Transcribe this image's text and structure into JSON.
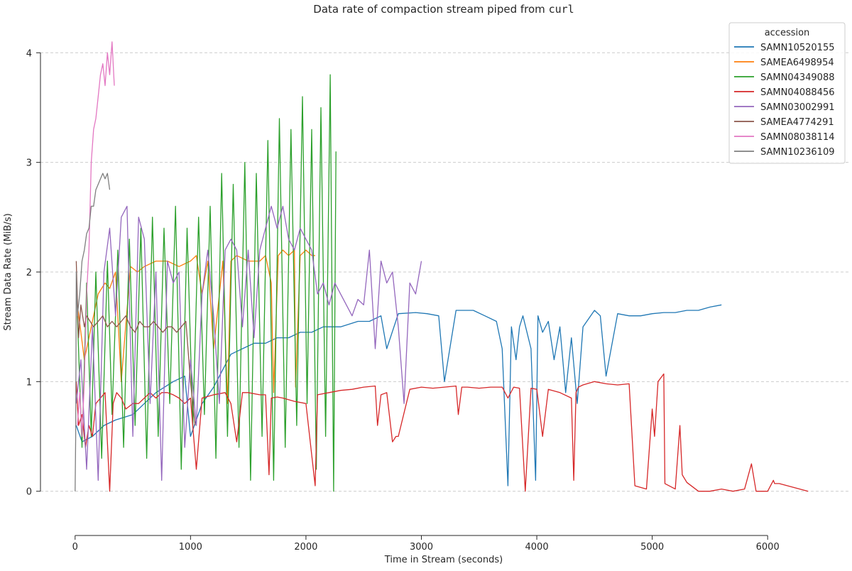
{
  "chart_data": {
    "type": "line",
    "title_prefix": "Data rate of compaction stream piped from ",
    "title_code": "curl",
    "xlabel": "Time in Stream (seconds)",
    "ylabel": "Stream Data Rate (MiB/s)",
    "xlim": [
      -300,
      6700
    ],
    "ylim": [
      -0.3,
      4.3
    ],
    "x_ticks": [
      0,
      1000,
      2000,
      3000,
      4000,
      5000,
      6000
    ],
    "y_ticks": [
      0,
      1,
      2,
      3,
      4
    ],
    "grid": "y-dashed",
    "legend_title": "accession",
    "legend_position": "top-right",
    "series": [
      {
        "name": "SAMN10520155",
        "color": "#1f77b4",
        "x": [
          10,
          60,
          150,
          250,
          350,
          500,
          600,
          700,
          850,
          950,
          1000,
          1100,
          1200,
          1300,
          1350,
          1450,
          1550,
          1650,
          1750,
          1850,
          1950,
          2050,
          2150,
          2300,
          2450,
          2550,
          2650,
          2700,
          2800,
          2950,
          3050,
          3150,
          3200,
          3300,
          3450,
          3550,
          3650,
          3700,
          3750,
          3780,
          3820,
          3850,
          3880,
          3950,
          3990,
          4010,
          4050,
          4100,
          4150,
          4200,
          4250,
          4300,
          4350,
          4400,
          4500,
          4550,
          4600,
          4700,
          4800,
          4900,
          5000,
          5100,
          5200,
          5300,
          5400,
          5500,
          5600
        ],
        "y": [
          0.6,
          0.45,
          0.5,
          0.6,
          0.65,
          0.7,
          0.8,
          0.9,
          1.0,
          1.05,
          0.5,
          0.8,
          0.95,
          1.15,
          1.25,
          1.3,
          1.35,
          1.35,
          1.4,
          1.4,
          1.45,
          1.45,
          1.5,
          1.5,
          1.55,
          1.55,
          1.6,
          1.3,
          1.62,
          1.63,
          1.62,
          1.6,
          1.0,
          1.65,
          1.65,
          1.6,
          1.55,
          1.3,
          0.05,
          1.5,
          1.2,
          1.5,
          1.6,
          1.3,
          0.1,
          1.6,
          1.45,
          1.55,
          1.2,
          1.5,
          0.9,
          1.4,
          0.8,
          1.5,
          1.65,
          1.6,
          1.05,
          1.62,
          1.6,
          1.6,
          1.62,
          1.63,
          1.63,
          1.65,
          1.65,
          1.68,
          1.7
        ]
      },
      {
        "name": "SAMEA6498954",
        "color": "#ff7f0e",
        "x": [
          20,
          80,
          140,
          200,
          260,
          300,
          350,
          400,
          480,
          540,
          600,
          700,
          800,
          900,
          1000,
          1050,
          1100,
          1150,
          1200,
          1280,
          1320,
          1350,
          1400,
          1500,
          1600,
          1650,
          1700,
          1720,
          1760,
          1800,
          1850,
          1900,
          1910,
          1950,
          2000,
          2050,
          2080
        ],
        "y": [
          1.7,
          1.2,
          1.5,
          1.8,
          1.9,
          1.85,
          2.0,
          1.0,
          2.05,
          2.0,
          2.05,
          2.1,
          2.1,
          2.05,
          2.1,
          2.15,
          1.8,
          2.1,
          1.3,
          2.1,
          0.8,
          2.1,
          2.15,
          2.1,
          2.1,
          2.15,
          1.9,
          0.9,
          2.15,
          2.2,
          2.15,
          2.2,
          0.95,
          2.15,
          2.2,
          2.15,
          2.15
        ]
      },
      {
        "name": "SAMN04349088",
        "color": "#2ca02c",
        "x": [
          20,
          60,
          100,
          140,
          180,
          230,
          280,
          320,
          370,
          420,
          470,
          520,
          570,
          620,
          670,
          720,
          770,
          820,
          870,
          920,
          970,
          1020,
          1070,
          1120,
          1170,
          1220,
          1270,
          1320,
          1370,
          1420,
          1470,
          1520,
          1570,
          1620,
          1670,
          1720,
          1770,
          1820,
          1870,
          1920,
          1970,
          2010,
          2050,
          2090,
          2130,
          2170,
          2210,
          2240,
          2260
        ],
        "y": [
          1.6,
          0.4,
          1.9,
          0.5,
          2.0,
          0.3,
          2.1,
          0.7,
          2.2,
          0.4,
          2.3,
          0.6,
          2.4,
          0.3,
          2.5,
          0.5,
          2.4,
          0.8,
          2.6,
          0.2,
          2.4,
          0.6,
          2.5,
          0.7,
          2.6,
          0.3,
          2.9,
          0.5,
          2.8,
          0.4,
          3.0,
          0.1,
          2.9,
          0.5,
          3.2,
          0.1,
          3.4,
          0.4,
          3.3,
          0.6,
          3.6,
          0.8,
          3.3,
          0.2,
          3.5,
          0.5,
          3.8,
          0.0,
          3.1
        ]
      },
      {
        "name": "SAMN04088456",
        "color": "#d62728",
        "x": [
          10,
          30,
          60,
          90,
          120,
          150,
          180,
          220,
          260,
          300,
          330,
          360,
          400,
          440,
          500,
          550,
          600,
          650,
          700,
          750,
          800,
          850,
          900,
          950,
          1000,
          1050,
          1100,
          1200,
          1300,
          1350,
          1400,
          1450,
          1500,
          1600,
          1650,
          1680,
          1700,
          1750,
          1800,
          1900,
          2000,
          2080,
          2100,
          2200,
          2300,
          2400,
          2500,
          2600,
          2620,
          2650,
          2700,
          2750,
          2780,
          2800,
          2900,
          3000,
          3100,
          3200,
          3300,
          3320,
          3350,
          3400,
          3500,
          3600,
          3700,
          3750,
          3800,
          3850,
          3900,
          3950,
          4000,
          4050,
          4100,
          4200,
          4300,
          4320,
          4340,
          4360,
          4400,
          4500,
          4600,
          4700,
          4800,
          4850,
          4950,
          5000,
          5020,
          5050,
          5100,
          5110,
          5200,
          5240,
          5260,
          5300,
          5400,
          5500,
          5600,
          5700,
          5800,
          5860,
          5900,
          6000,
          6050,
          6060,
          6100,
          6350
        ],
        "y": [
          1.0,
          0.6,
          0.7,
          0.4,
          0.6,
          0.5,
          0.8,
          0.85,
          0.9,
          0.0,
          0.8,
          0.9,
          0.85,
          0.75,
          0.8,
          0.8,
          0.85,
          0.9,
          0.85,
          0.9,
          0.9,
          0.88,
          0.85,
          0.8,
          0.85,
          0.2,
          0.85,
          0.88,
          0.9,
          0.8,
          0.45,
          0.9,
          0.9,
          0.88,
          0.88,
          0.15,
          0.85,
          0.86,
          0.85,
          0.82,
          0.8,
          0.05,
          0.88,
          0.9,
          0.92,
          0.93,
          0.95,
          0.96,
          0.6,
          0.88,
          0.9,
          0.45,
          0.5,
          0.5,
          0.93,
          0.95,
          0.94,
          0.95,
          0.96,
          0.7,
          0.95,
          0.95,
          0.94,
          0.95,
          0.95,
          0.85,
          0.95,
          0.94,
          0.0,
          0.94,
          0.93,
          0.5,
          0.93,
          0.9,
          0.85,
          0.1,
          0.9,
          0.95,
          0.97,
          1.0,
          0.98,
          0.97,
          0.98,
          0.05,
          0.02,
          0.75,
          0.5,
          1.0,
          1.07,
          0.07,
          0.02,
          0.6,
          0.15,
          0.08,
          0.0,
          0.0,
          0.02,
          0.0,
          0.02,
          0.25,
          0.0,
          0.0,
          0.1,
          0.07,
          0.07,
          0.0
        ]
      },
      {
        "name": "SAMN03002991",
        "color": "#9467bd",
        "x": [
          10,
          50,
          100,
          150,
          200,
          250,
          300,
          350,
          400,
          450,
          500,
          550,
          600,
          650,
          700,
          750,
          800,
          850,
          900,
          950,
          1000,
          1050,
          1100,
          1150,
          1200,
          1250,
          1300,
          1350,
          1400,
          1450,
          1500,
          1550,
          1600,
          1650,
          1700,
          1750,
          1800,
          1850,
          1900,
          1950,
          2000,
          2050,
          2100,
          2150,
          2200,
          2250,
          2300,
          2350,
          2400,
          2450,
          2500,
          2550,
          2600,
          2650,
          2700,
          2750,
          2800,
          2850,
          2900,
          2950,
          3000
        ],
        "y": [
          0.8,
          1.2,
          0.2,
          1.5,
          0.1,
          2.0,
          2.4,
          1.6,
          2.5,
          2.6,
          0.5,
          2.5,
          2.3,
          0.8,
          2.0,
          0.1,
          2.1,
          1.9,
          2.0,
          0.4,
          1.2,
          0.6,
          1.8,
          2.2,
          1.6,
          0.8,
          2.2,
          2.3,
          2.2,
          1.5,
          2.2,
          1.4,
          2.2,
          2.4,
          2.6,
          2.4,
          2.6,
          2.3,
          2.2,
          2.4,
          2.3,
          2.2,
          1.8,
          1.9,
          1.7,
          1.9,
          1.8,
          1.7,
          1.6,
          1.75,
          1.7,
          2.2,
          1.3,
          2.1,
          1.9,
          2.0,
          1.5,
          0.8,
          1.9,
          1.8,
          2.1
        ]
      },
      {
        "name": "SAMEA4774291",
        "color": "#8c564b",
        "x": [
          10,
          30,
          50,
          80,
          100,
          130,
          160,
          200,
          240,
          280,
          320,
          360,
          400,
          440,
          480,
          520,
          560,
          600,
          640,
          680,
          720,
          760,
          800,
          840,
          880,
          920,
          960,
          1000,
          1040
        ],
        "y": [
          2.1,
          1.4,
          1.7,
          1.5,
          1.6,
          1.55,
          1.5,
          1.55,
          1.6,
          1.5,
          1.55,
          1.5,
          1.55,
          1.6,
          1.5,
          1.45,
          1.55,
          1.5,
          1.5,
          1.55,
          1.5,
          1.45,
          1.5,
          1.5,
          1.45,
          1.5,
          1.55,
          1.0,
          0.6
        ]
      },
      {
        "name": "SAMN08038114",
        "color": "#e377c2",
        "x": [
          20,
          40,
          60,
          80,
          100,
          120,
          140,
          160,
          180,
          200,
          220,
          240,
          260,
          280,
          300,
          320,
          340
        ],
        "y": [
          0.6,
          0.9,
          0.5,
          1.0,
          1.8,
          2.2,
          3.0,
          3.3,
          3.4,
          3.6,
          3.8,
          3.9,
          3.7,
          4.0,
          3.8,
          4.1,
          3.7
        ]
      },
      {
        "name": "SAMN10236109",
        "color": "#7f7f7f",
        "x": [
          0,
          5,
          10,
          20,
          40,
          60,
          80,
          100,
          120,
          140,
          160,
          180,
          200,
          220,
          240,
          260,
          280,
          300
        ],
        "y": [
          0.0,
          0.5,
          2.0,
          1.6,
          1.8,
          2.1,
          2.2,
          2.35,
          2.4,
          2.6,
          2.6,
          2.75,
          2.8,
          2.85,
          2.9,
          2.85,
          2.9,
          2.75
        ]
      }
    ]
  }
}
